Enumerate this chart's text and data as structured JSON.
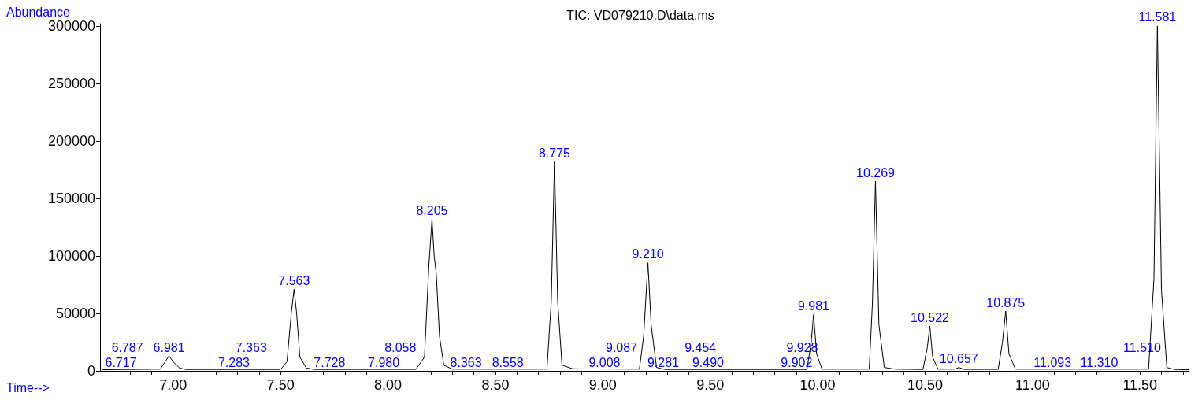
{
  "chart_data": {
    "type": "line",
    "title": "TIC: VD079210.D\\data.ms",
    "xlabel": "Time-->",
    "ylabel": "Abundance",
    "x": [
      6.67,
      6.94,
      6.96,
      6.981,
      7.0,
      7.03,
      7.06,
      7.5,
      7.53,
      7.55,
      7.563,
      7.575,
      7.59,
      7.62,
      7.66,
      8.13,
      8.17,
      8.19,
      8.205,
      8.215,
      8.225,
      8.24,
      8.26,
      8.3,
      8.74,
      8.76,
      8.775,
      8.79,
      8.81,
      8.86,
      9.17,
      9.19,
      9.21,
      9.225,
      9.25,
      9.29,
      9.95,
      9.97,
      9.981,
      9.995,
      10.02,
      10.24,
      10.255,
      10.269,
      10.285,
      10.31,
      10.36,
      10.49,
      10.51,
      10.522,
      10.535,
      10.56,
      10.64,
      10.657,
      10.68,
      10.84,
      10.86,
      10.875,
      10.89,
      10.92,
      11.54,
      11.565,
      11.581,
      11.6,
      11.625,
      11.66,
      11.73
    ],
    "series": [
      {
        "color": "#000000",
        "values": [
          1000,
          1500,
          7000,
          13000,
          8000,
          2500,
          1200,
          1200,
          8000,
          50000,
          71000,
          50000,
          12000,
          2500,
          1200,
          1300,
          12000,
          90000,
          132000,
          100000,
          84000,
          30000,
          5000,
          1500,
          1500,
          60000,
          182000,
          60000,
          5000,
          1800,
          1500,
          30000,
          94000,
          40000,
          3000,
          1200,
          1200,
          25000,
          49000,
          15000,
          1500,
          1500,
          60000,
          165000,
          40000,
          3000,
          1500,
          1200,
          20000,
          39000,
          12000,
          1500,
          1500,
          3000,
          1300,
          1300,
          25000,
          52000,
          15000,
          1500,
          1500,
          80000,
          300000,
          70000,
          3000,
          1200,
          1000
        ]
      }
    ],
    "annotations": [
      {
        "text": "6.717",
        "x": 6.717,
        "y": 0
      },
      {
        "text": "6.787",
        "x": 6.787,
        "y": 0
      },
      {
        "text": "6.981",
        "x": 6.981,
        "y": 13000
      },
      {
        "text": "7.283",
        "x": 7.283,
        "y": 0
      },
      {
        "text": "7.363",
        "x": 7.363,
        "y": 0
      },
      {
        "text": "7.563",
        "x": 7.563,
        "y": 71000
      },
      {
        "text": "7.728",
        "x": 7.728,
        "y": 0
      },
      {
        "text": "7.980",
        "x": 7.98,
        "y": 0
      },
      {
        "text": "8.058",
        "x": 8.058,
        "y": 0
      },
      {
        "text": "8.205",
        "x": 8.205,
        "y": 132000
      },
      {
        "text": "8.363",
        "x": 8.363,
        "y": 0
      },
      {
        "text": "8.558",
        "x": 8.558,
        "y": 0
      },
      {
        "text": "8.775",
        "x": 8.775,
        "y": 182000
      },
      {
        "text": "9.008",
        "x": 9.008,
        "y": 0
      },
      {
        "text": "9.087",
        "x": 9.087,
        "y": 0
      },
      {
        "text": "9.210",
        "x": 9.21,
        "y": 94000
      },
      {
        "text": "9.281",
        "x": 9.281,
        "y": 0
      },
      {
        "text": "9.454",
        "x": 9.454,
        "y": 0
      },
      {
        "text": "9.490",
        "x": 9.49,
        "y": 0
      },
      {
        "text": "9.902",
        "x": 9.902,
        "y": 0
      },
      {
        "text": "9.928",
        "x": 9.928,
        "y": 0
      },
      {
        "text": "9.981",
        "x": 9.981,
        "y": 49000
      },
      {
        "text": "10.269",
        "x": 10.269,
        "y": 165000
      },
      {
        "text": "10.522",
        "x": 10.522,
        "y": 39000
      },
      {
        "text": "10.657",
        "x": 10.657,
        "y": 3000
      },
      {
        "text": "10.875",
        "x": 10.875,
        "y": 52000
      },
      {
        "text": "11.093",
        "x": 11.093,
        "y": 0
      },
      {
        "text": "11.310",
        "x": 11.31,
        "y": 0
      },
      {
        "text": "11.510",
        "x": 11.51,
        "y": 0
      },
      {
        "text": "11.581",
        "x": 11.581,
        "y": 300000
      }
    ],
    "xlim": [
      6.66,
      11.73
    ],
    "xticks": [
      {
        "value": 6.7,
        "label": null
      },
      {
        "value": 6.8,
        "label": null
      },
      {
        "value": 6.9,
        "label": null
      },
      {
        "value": 7.0,
        "label": "7.00"
      },
      {
        "value": 7.1,
        "label": null
      },
      {
        "value": 7.2,
        "label": null
      },
      {
        "value": 7.3,
        "label": null
      },
      {
        "value": 7.4,
        "label": null
      },
      {
        "value": 7.5,
        "label": "7.50"
      },
      {
        "value": 7.6,
        "label": null
      },
      {
        "value": 7.7,
        "label": null
      },
      {
        "value": 7.8,
        "label": null
      },
      {
        "value": 7.9,
        "label": null
      },
      {
        "value": 8.0,
        "label": "8.00"
      },
      {
        "value": 8.1,
        "label": null
      },
      {
        "value": 8.2,
        "label": null
      },
      {
        "value": 8.3,
        "label": null
      },
      {
        "value": 8.4,
        "label": null
      },
      {
        "value": 8.5,
        "label": "8.50"
      },
      {
        "value": 8.6,
        "label": null
      },
      {
        "value": 8.7,
        "label": null
      },
      {
        "value": 8.8,
        "label": null
      },
      {
        "value": 8.9,
        "label": null
      },
      {
        "value": 9.0,
        "label": "9.00"
      },
      {
        "value": 9.1,
        "label": null
      },
      {
        "value": 9.2,
        "label": null
      },
      {
        "value": 9.3,
        "label": null
      },
      {
        "value": 9.4,
        "label": null
      },
      {
        "value": 9.5,
        "label": "9.50"
      },
      {
        "value": 9.6,
        "label": null
      },
      {
        "value": 9.7,
        "label": null
      },
      {
        "value": 9.8,
        "label": null
      },
      {
        "value": 9.9,
        "label": null
      },
      {
        "value": 10.0,
        "label": "10.00"
      },
      {
        "value": 10.1,
        "label": null
      },
      {
        "value": 10.2,
        "label": null
      },
      {
        "value": 10.3,
        "label": null
      },
      {
        "value": 10.4,
        "label": null
      },
      {
        "value": 10.5,
        "label": "10.50"
      },
      {
        "value": 10.6,
        "label": null
      },
      {
        "value": 10.7,
        "label": null
      },
      {
        "value": 10.8,
        "label": null
      },
      {
        "value": 10.9,
        "label": null
      },
      {
        "value": 11.0,
        "label": "11.00"
      },
      {
        "value": 11.1,
        "label": null
      },
      {
        "value": 11.2,
        "label": null
      },
      {
        "value": 11.3,
        "label": null
      },
      {
        "value": 11.4,
        "label": null
      },
      {
        "value": 11.5,
        "label": "11.50"
      },
      {
        "value": 11.6,
        "label": null
      },
      {
        "value": 11.7,
        "label": null
      }
    ],
    "ylim": [
      0,
      302000
    ],
    "yticks": [
      0,
      50000,
      100000,
      150000,
      200000,
      250000,
      300000
    ],
    "grid": false,
    "marker": "none",
    "line_style": "solid"
  }
}
